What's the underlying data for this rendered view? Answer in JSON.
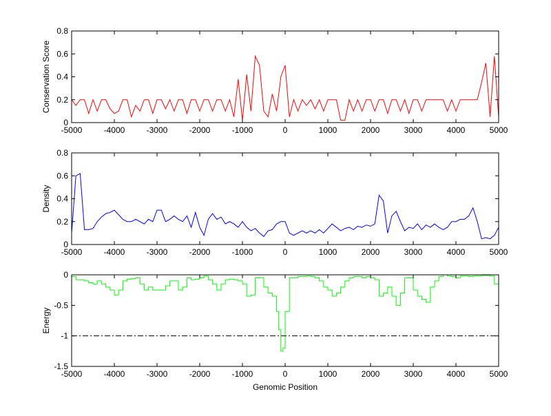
{
  "chart_data": [
    {
      "type": "line",
      "title": "",
      "xlabel": "",
      "ylabel": "Conservation Score",
      "xlim": [
        -5000,
        5000
      ],
      "ylim": [
        0,
        0.8
      ],
      "xticks": [
        -5000,
        -4000,
        -3000,
        -2000,
        -1000,
        0,
        1000,
        2000,
        3000,
        4000,
        5000
      ],
      "yticks": [
        0,
        0.2,
        0.4,
        0.6,
        0.8
      ],
      "ytick_labels": [
        "0",
        "0.2",
        "0.4",
        "0.6",
        "0.8"
      ],
      "grid": false,
      "color": "#ff0000",
      "step": false,
      "x": [
        -5000,
        -4900,
        -4800,
        -4700,
        -4600,
        -4500,
        -4400,
        -4300,
        -4200,
        -4100,
        -4000,
        -3900,
        -3800,
        -3700,
        -3600,
        -3500,
        -3400,
        -3300,
        -3200,
        -3100,
        -3000,
        -2900,
        -2800,
        -2700,
        -2600,
        -2500,
        -2400,
        -2300,
        -2200,
        -2100,
        -2000,
        -1900,
        -1800,
        -1700,
        -1600,
        -1500,
        -1400,
        -1300,
        -1200,
        -1100,
        -1000,
        -900,
        -800,
        -700,
        -600,
        -500,
        -400,
        -300,
        -200,
        -100,
        0,
        100,
        200,
        300,
        400,
        500,
        600,
        700,
        800,
        900,
        1000,
        1100,
        1200,
        1300,
        1400,
        1500,
        1600,
        1700,
        1800,
        1900,
        2000,
        2100,
        2200,
        2300,
        2400,
        2500,
        2600,
        2700,
        2800,
        2900,
        3000,
        3100,
        3200,
        3300,
        3400,
        3500,
        3600,
        3700,
        3800,
        3900,
        4000,
        4100,
        4200,
        4300,
        4400,
        4500,
        4600,
        4700,
        4800,
        4900,
        5000
      ],
      "y": [
        0.2,
        0.15,
        0.2,
        0.2,
        0.08,
        0.2,
        0.1,
        0.2,
        0.2,
        0.12,
        0.08,
        0.1,
        0.2,
        0.2,
        0.05,
        0.15,
        0.1,
        0.2,
        0.2,
        0.08,
        0.2,
        0.2,
        0.12,
        0.2,
        0.1,
        0.2,
        0.2,
        0.08,
        0.2,
        0.2,
        0.1,
        0.2,
        0.2,
        0.1,
        0.2,
        0.2,
        0.1,
        0.2,
        0.05,
        0.38,
        0.02,
        0.42,
        0.1,
        0.58,
        0.5,
        0.1,
        0.05,
        0.25,
        0.1,
        0.4,
        0.5,
        0.05,
        0.2,
        0.1,
        0.2,
        0.15,
        0.2,
        0.12,
        0.2,
        0.1,
        0.2,
        0.2,
        0.2,
        0.02,
        0.02,
        0.2,
        0.1,
        0.2,
        0.1,
        0.2,
        0.2,
        0.1,
        0.2,
        0.2,
        0.08,
        0.2,
        0.2,
        0.1,
        0.2,
        0.08,
        0.2,
        0.2,
        0.1,
        0.2,
        0.2,
        0.2,
        0.2,
        0.2,
        0.1,
        0.2,
        0.1,
        0.2,
        0.2,
        0.2,
        0.2,
        0.2,
        0.35,
        0.52,
        0.05,
        0.58,
        0.05
      ]
    },
    {
      "type": "line",
      "title": "",
      "xlabel": "",
      "ylabel": "Density",
      "xlim": [
        -5000,
        5000
      ],
      "ylim": [
        0,
        0.8
      ],
      "xticks": [
        -5000,
        -4000,
        -3000,
        -2000,
        -1000,
        0,
        1000,
        2000,
        3000,
        4000,
        5000
      ],
      "yticks": [
        0,
        0.2,
        0.4,
        0.6,
        0.8
      ],
      "ytick_labels": [
        "0",
        "0.2",
        "0.4",
        "0.6",
        "0.8"
      ],
      "grid": false,
      "color": "#0000ff",
      "step": false,
      "x": [
        -5000,
        -4900,
        -4800,
        -4700,
        -4600,
        -4500,
        -4400,
        -4300,
        -4200,
        -4100,
        -4000,
        -3900,
        -3800,
        -3700,
        -3600,
        -3500,
        -3400,
        -3300,
        -3200,
        -3100,
        -3000,
        -2900,
        -2800,
        -2700,
        -2600,
        -2500,
        -2400,
        -2300,
        -2200,
        -2100,
        -2000,
        -1900,
        -1800,
        -1700,
        -1600,
        -1500,
        -1400,
        -1300,
        -1200,
        -1100,
        -1000,
        -900,
        -800,
        -700,
        -600,
        -500,
        -400,
        -300,
        -200,
        -100,
        0,
        100,
        200,
        300,
        400,
        500,
        600,
        700,
        800,
        900,
        1000,
        1100,
        1200,
        1300,
        1400,
        1500,
        1600,
        1700,
        1800,
        1900,
        2000,
        2100,
        2200,
        2300,
        2400,
        2500,
        2600,
        2700,
        2800,
        2900,
        3000,
        3100,
        3200,
        3300,
        3400,
        3500,
        3600,
        3700,
        3800,
        3900,
        4000,
        4100,
        4200,
        4300,
        4400,
        4500,
        4600,
        4700,
        4800,
        4900,
        5000
      ],
      "y": [
        0.1,
        0.6,
        0.62,
        0.13,
        0.13,
        0.14,
        0.2,
        0.24,
        0.27,
        0.28,
        0.3,
        0.26,
        0.22,
        0.2,
        0.2,
        0.22,
        0.2,
        0.18,
        0.22,
        0.2,
        0.3,
        0.3,
        0.2,
        0.22,
        0.25,
        0.22,
        0.2,
        0.25,
        0.15,
        0.28,
        0.15,
        0.08,
        0.22,
        0.27,
        0.22,
        0.24,
        0.18,
        0.2,
        0.18,
        0.15,
        0.2,
        0.15,
        0.12,
        0.14,
        0.1,
        0.07,
        0.12,
        0.13,
        0.18,
        0.2,
        0.2,
        0.1,
        0.08,
        0.1,
        0.12,
        0.1,
        0.12,
        0.1,
        0.13,
        0.1,
        0.14,
        0.18,
        0.15,
        0.12,
        0.14,
        0.15,
        0.13,
        0.16,
        0.15,
        0.17,
        0.16,
        0.18,
        0.43,
        0.38,
        0.1,
        0.25,
        0.29,
        0.2,
        0.12,
        0.15,
        0.14,
        0.18,
        0.13,
        0.17,
        0.15,
        0.18,
        0.15,
        0.13,
        0.15,
        0.2,
        0.2,
        0.22,
        0.22,
        0.25,
        0.32,
        0.2,
        0.05,
        0.06,
        0.05,
        0.08,
        0.15
      ]
    },
    {
      "type": "line",
      "title": "",
      "xlabel": "Genomic Position",
      "ylabel": "Energy",
      "xlim": [
        -5000,
        5000
      ],
      "ylim": [
        -1.5,
        0
      ],
      "xticks": [
        -5000,
        -4000,
        -3000,
        -2000,
        -1000,
        0,
        1000,
        2000,
        3000,
        4000,
        5000
      ],
      "yticks": [
        -1.5,
        -1,
        -0.5,
        0
      ],
      "ytick_labels": [
        "-1.5",
        "-1",
        "-0.5",
        "0"
      ],
      "grid": false,
      "color": "#00ff00",
      "step": true,
      "threshold": {
        "y": -1,
        "style": "dash-dot",
        "color": "#000000"
      },
      "x": [
        -5000,
        -4900,
        -4800,
        -4700,
        -4600,
        -4500,
        -4400,
        -4300,
        -4200,
        -4100,
        -4000,
        -3900,
        -3800,
        -3700,
        -3600,
        -3500,
        -3400,
        -3300,
        -3200,
        -3100,
        -3000,
        -2900,
        -2800,
        -2700,
        -2600,
        -2500,
        -2400,
        -2300,
        -2200,
        -2100,
        -2000,
        -1900,
        -1800,
        -1700,
        -1600,
        -1500,
        -1400,
        -1300,
        -1200,
        -1100,
        -1000,
        -900,
        -800,
        -700,
        -600,
        -500,
        -400,
        -300,
        -200,
        -150,
        -100,
        -50,
        0,
        100,
        200,
        300,
        400,
        500,
        600,
        700,
        800,
        900,
        1000,
        1100,
        1200,
        1300,
        1400,
        1500,
        1600,
        1700,
        1800,
        1900,
        2000,
        2100,
        2200,
        2300,
        2400,
        2500,
        2600,
        2700,
        2800,
        2900,
        3000,
        3100,
        3200,
        3300,
        3400,
        3500,
        3600,
        3700,
        3800,
        3900,
        4000,
        4100,
        4200,
        4300,
        4400,
        4500,
        4600,
        4700,
        4800,
        4900,
        5000
      ],
      "y": [
        -0.03,
        -0.08,
        -0.08,
        -0.1,
        -0.13,
        -0.15,
        -0.1,
        -0.15,
        -0.2,
        -0.25,
        -0.33,
        -0.25,
        -0.1,
        -0.07,
        -0.06,
        -0.05,
        -0.15,
        -0.25,
        -0.2,
        -0.25,
        -0.25,
        -0.25,
        -0.18,
        -0.1,
        -0.1,
        -0.25,
        -0.2,
        -0.05,
        -0.08,
        -0.07,
        -0.05,
        -0.02,
        -0.08,
        -0.15,
        -0.25,
        -0.15,
        -0.08,
        -0.07,
        -0.08,
        -0.1,
        -0.15,
        -0.35,
        -0.33,
        -0.05,
        -0.05,
        -0.2,
        -0.3,
        -0.35,
        -0.6,
        -0.9,
        -1.25,
        -1.2,
        -0.6,
        -0.05,
        -0.05,
        -0.03,
        -0.03,
        -0.02,
        -0.03,
        -0.05,
        -0.1,
        -0.2,
        -0.25,
        -0.35,
        -0.3,
        -0.2,
        -0.1,
        -0.05,
        -0.03,
        -0.03,
        -0.05,
        -0.03,
        -0.05,
        -0.08,
        -0.35,
        -0.3,
        -0.2,
        -0.35,
        -0.5,
        -0.3,
        -0.05,
        -0.05,
        -0.25,
        -0.35,
        -0.4,
        -0.45,
        -0.2,
        -0.1,
        -0.03,
        0,
        -0.02,
        -0.03,
        -0.05,
        -0.02,
        -0.02,
        -0.03,
        -0.02,
        -0.02,
        -0.01,
        -0.01,
        -0.02,
        -0.15,
        -0.3
      ]
    }
  ]
}
